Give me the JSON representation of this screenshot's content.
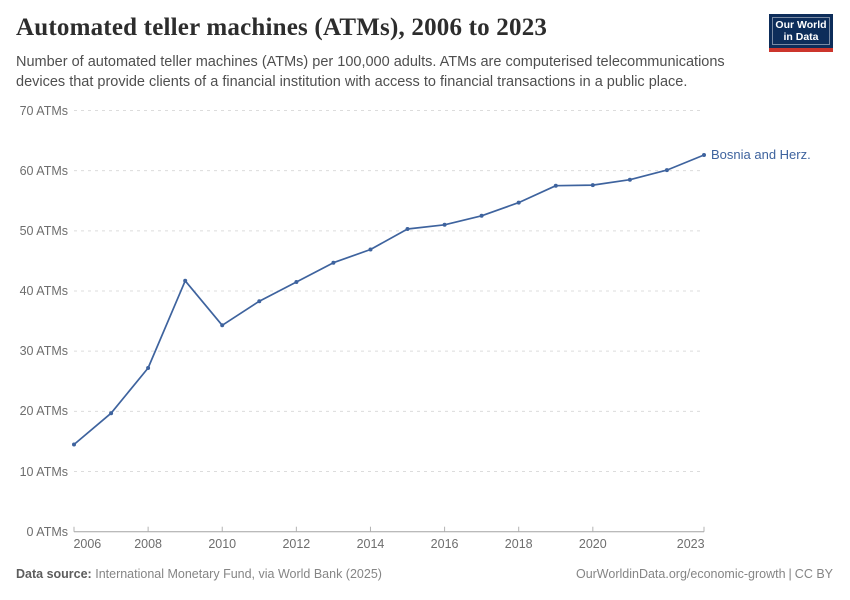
{
  "header": {
    "title": "Automated teller machines (ATMs), 2006 to 2023",
    "subtitle": "Number of automated teller machines (ATMs) per 100,000 adults. ATMs are computerised telecommunications devices that provide clients of a financial institution with access to financial transactions in a public place.",
    "logo": {
      "line1": "Our World",
      "line2": "in Data"
    }
  },
  "chart_data": {
    "type": "line",
    "title": "Automated teller machines (ATMs), 2006 to 2023",
    "xlabel": "",
    "ylabel": "ATMs per 100,000 adults",
    "xlim": [
      2006,
      2023
    ],
    "ylim": [
      0,
      70
    ],
    "grid": "horizontal dashed",
    "legend": "end-of-line label",
    "x": [
      2006,
      2007,
      2008,
      2009,
      2010,
      2011,
      2012,
      2013,
      2014,
      2015,
      2016,
      2017,
      2018,
      2019,
      2020,
      2021,
      2022,
      2023
    ],
    "series": [
      {
        "name": "Bosnia and Herz.",
        "color": "#3e639e",
        "values": [
          14.5,
          19.7,
          27.2,
          41.7,
          34.3,
          38.3,
          41.5,
          44.7,
          46.9,
          50.3,
          51.0,
          52.5,
          54.7,
          57.5,
          57.6,
          58.5,
          60.1,
          62.6
        ]
      }
    ],
    "yticks": [
      {
        "value": 0,
        "label": "0 ATMs"
      },
      {
        "value": 10,
        "label": "10 ATMs"
      },
      {
        "value": 20,
        "label": "20 ATMs"
      },
      {
        "value": 30,
        "label": "30 ATMs"
      },
      {
        "value": 40,
        "label": "40 ATMs"
      },
      {
        "value": 50,
        "label": "50 ATMs"
      },
      {
        "value": 60,
        "label": "60 ATMs"
      },
      {
        "value": 70,
        "label": "70 ATMs"
      }
    ],
    "xticks": [
      {
        "value": 2006,
        "label": "2006"
      },
      {
        "value": 2008,
        "label": "2008"
      },
      {
        "value": 2010,
        "label": "2010"
      },
      {
        "value": 2012,
        "label": "2012"
      },
      {
        "value": 2014,
        "label": "2014"
      },
      {
        "value": 2016,
        "label": "2016"
      },
      {
        "value": 2018,
        "label": "2018"
      },
      {
        "value": 2020,
        "label": "2020"
      },
      {
        "value": 2023,
        "label": "2023"
      }
    ]
  },
  "footer": {
    "data_source_label": "Data source:",
    "data_source_value": "International Monetary Fund, via World Bank (2025)",
    "url": "OurWorldinData.org/economic-growth",
    "separator": "|",
    "license": "CC BY"
  },
  "colors": {
    "line": "#3e639e",
    "grid": "#dcdcdc",
    "axis": "#a3a3a3",
    "tick": "#b3b3b3",
    "title_text": "#2d2d2d",
    "subtitle_text": "#4f4f4f",
    "muted_text": "#858585",
    "logo_navy": "#0d2d5a",
    "logo_red": "#cc352c"
  }
}
